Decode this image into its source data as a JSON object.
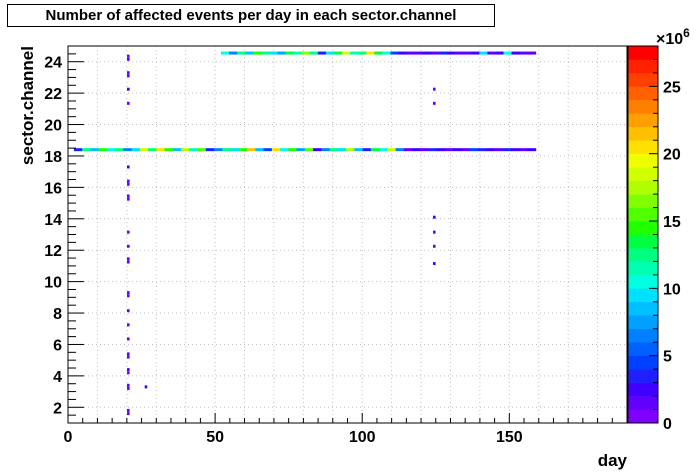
{
  "chart_data": {
    "type": "heatmap",
    "title": "Number of affected events per day in each sector.channel",
    "xlabel": "day",
    "ylabel": "sector.channel",
    "xlim": [
      0,
      190
    ],
    "ylim": [
      1,
      25
    ],
    "x_ticks": [
      0,
      50,
      100,
      150
    ],
    "y_ticks": [
      2,
      4,
      6,
      8,
      10,
      12,
      14,
      16,
      18,
      20,
      22,
      24
    ],
    "grid": true,
    "colorbar": {
      "range": [
        0,
        28
      ],
      "exponent_label": "×10",
      "exponent": "6",
      "ticks": [
        0,
        5,
        10,
        15,
        20,
        25
      ],
      "palette": [
        "#7f00ff",
        "#6200ff",
        "#3f00ff",
        "#2020ff",
        "#0040ff",
        "#0060ff",
        "#0080ff",
        "#00a0ff",
        "#00c0ff",
        "#00e0ff",
        "#00ffe0",
        "#00ffb0",
        "#00ff80",
        "#00ff40",
        "#20ff00",
        "#50ff00",
        "#80ff00",
        "#b0ff00",
        "#d0ff00",
        "#f0ff00",
        "#ffe000",
        "#ffc000",
        "#ffa000",
        "#ff8000",
        "#ff6000",
        "#ff4000",
        "#ff2000",
        "#ff0000"
      ]
    },
    "bands": [
      {
        "y": 18.4,
        "x_start": 2,
        "x_end": 159,
        "values": [
          3,
          12,
          8,
          14,
          10,
          12,
          6,
          9,
          18,
          12,
          20,
          14,
          8,
          17,
          11,
          15,
          3,
          6,
          12,
          9,
          14,
          21,
          8,
          4,
          20,
          10,
          14,
          7,
          15,
          2,
          6,
          12,
          9,
          17,
          8,
          3,
          13,
          10,
          18,
          6,
          1,
          2,
          1,
          3,
          2,
          1,
          2,
          1,
          4,
          3,
          2,
          1,
          3,
          2,
          1,
          2
        ]
      },
      {
        "y": 24.55,
        "x_start": 52,
        "x_end": 159,
        "values": [
          10,
          6,
          12,
          8,
          14,
          12,
          9,
          7,
          13,
          11,
          16,
          12,
          3,
          9,
          13,
          18,
          11,
          12,
          20,
          13,
          10,
          4,
          2,
          1,
          1,
          2,
          1,
          3,
          2,
          1,
          1,
          2,
          9,
          1,
          2,
          10,
          2,
          1,
          1
        ]
      }
    ],
    "points": [
      {
        "x": 20.5,
        "y": 24.35,
        "v": 1
      },
      {
        "x": 20.5,
        "y": 24.15,
        "v": 1
      },
      {
        "x": 20.5,
        "y": 23.3,
        "v": 1
      },
      {
        "x": 20.5,
        "y": 23.1,
        "v": 1
      },
      {
        "x": 20.5,
        "y": 22.25,
        "v": 2
      },
      {
        "x": 20.5,
        "y": 21.35,
        "v": 1
      },
      {
        "x": 20.5,
        "y": 17.3,
        "v": 2
      },
      {
        "x": 20.5,
        "y": 16.4,
        "v": 1
      },
      {
        "x": 20.5,
        "y": 16.2,
        "v": 1
      },
      {
        "x": 20.5,
        "y": 15.45,
        "v": 1
      },
      {
        "x": 20.5,
        "y": 15.25,
        "v": 1
      },
      {
        "x": 20.5,
        "y": 13.15,
        "v": 1
      },
      {
        "x": 20.5,
        "y": 12.25,
        "v": 1
      },
      {
        "x": 20.5,
        "y": 11.45,
        "v": 1
      },
      {
        "x": 20.5,
        "y": 11.25,
        "v": 1
      },
      {
        "x": 20.5,
        "y": 9.3,
        "v": 1
      },
      {
        "x": 20.5,
        "y": 9.1,
        "v": 1
      },
      {
        "x": 20.5,
        "y": 8.15,
        "v": 1
      },
      {
        "x": 20.5,
        "y": 7.25,
        "v": 1
      },
      {
        "x": 20.5,
        "y": 6.35,
        "v": 1
      },
      {
        "x": 20.5,
        "y": 5.4,
        "v": 1
      },
      {
        "x": 20.5,
        "y": 5.2,
        "v": 1
      },
      {
        "x": 20.5,
        "y": 4.4,
        "v": 1
      },
      {
        "x": 20.5,
        "y": 4.2,
        "v": 1
      },
      {
        "x": 20.5,
        "y": 3.4,
        "v": 1
      },
      {
        "x": 20.5,
        "y": 3.2,
        "v": 1
      },
      {
        "x": 26.5,
        "y": 3.3,
        "v": 2
      },
      {
        "x": 20.5,
        "y": 1.8,
        "v": 1
      },
      {
        "x": 20.5,
        "y": 1.6,
        "v": 1
      },
      {
        "x": 124.5,
        "y": 22.25,
        "v": 1
      },
      {
        "x": 124.5,
        "y": 21.35,
        "v": 1
      },
      {
        "x": 124.5,
        "y": 14.1,
        "v": 2
      },
      {
        "x": 124.5,
        "y": 13.15,
        "v": 1
      },
      {
        "x": 124.5,
        "y": 12.25,
        "v": 1
      },
      {
        "x": 124.5,
        "y": 11.15,
        "v": 2
      }
    ]
  }
}
